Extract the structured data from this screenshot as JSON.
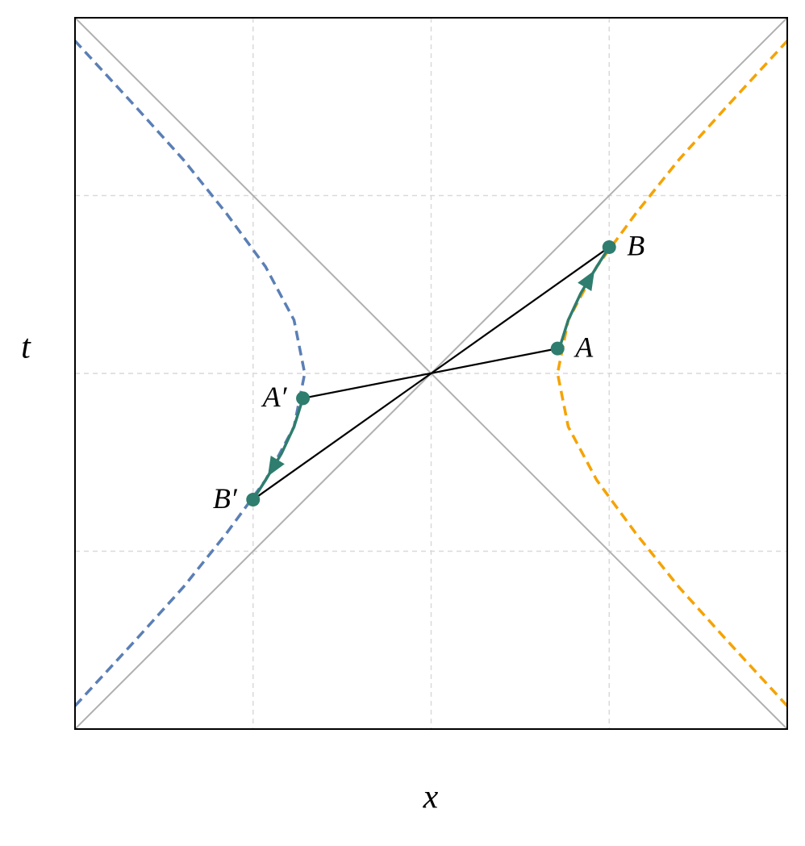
{
  "chart_data": {
    "type": "line",
    "xlabel": "x",
    "ylabel": "t",
    "xlim": [
      -2,
      2
    ],
    "ylim": [
      -2,
      2
    ],
    "xgrid": [
      -1,
      0,
      1
    ],
    "ygrid": [
      -1,
      0,
      1
    ],
    "grid": true,
    "series": [
      {
        "color": "#b0b0b0",
        "style": "solid",
        "x": [
          -2,
          2
        ],
        "values": [
          -2,
          2
        ]
      },
      {
        "color": "#b0b0b0",
        "style": "solid",
        "x": [
          -2,
          2
        ],
        "values": [
          2,
          -2
        ]
      },
      {
        "color": "#f5a300",
        "style": "dashed",
        "x": [
          2.0,
          1.66,
          1.39,
          1.15,
          0.93,
          0.77,
          0.71,
          0.77,
          0.93,
          1.15,
          1.39,
          1.66,
          2.0
        ],
        "values": [
          -1.87,
          -1.5,
          -1.2,
          -0.9,
          -0.6,
          -0.3,
          0,
          0.3,
          0.6,
          0.9,
          1.2,
          1.5,
          1.87
        ]
      },
      {
        "color": "#5b7fb5",
        "style": "dashed",
        "x": [
          -2.0,
          -1.66,
          -1.39,
          -1.15,
          -0.93,
          -0.77,
          -0.71,
          -0.77,
          -0.93,
          -1.15,
          -1.39,
          -1.66,
          -2.0
        ],
        "values": [
          -1.87,
          -1.5,
          -1.2,
          -0.9,
          -0.6,
          -0.3,
          0,
          0.3,
          0.6,
          0.9,
          1.2,
          1.5,
          1.87
        ]
      },
      {
        "color": "#000000",
        "style": "solid",
        "x": [
          -0.72,
          0.71
        ],
        "values": [
          -0.14,
          0.14
        ]
      },
      {
        "color": "#000000",
        "style": "solid",
        "x": [
          -1.0,
          1.0
        ],
        "values": [
          -0.71,
          0.71
        ]
      },
      {
        "color": "#2e7d6e",
        "style": "solid",
        "arrow": true,
        "x": [
          0.72,
          0.77,
          0.84,
          0.93,
          1.0
        ],
        "values": [
          0.14,
          0.3,
          0.45,
          0.6,
          0.71
        ]
      },
      {
        "color": "#2e7d6e",
        "style": "solid",
        "arrow": true,
        "x": [
          -0.72,
          -0.77,
          -0.84,
          -0.93,
          -1.0
        ],
        "values": [
          -0.14,
          -0.3,
          -0.45,
          -0.6,
          -0.71
        ]
      }
    ],
    "points": [
      {
        "label": "A",
        "x": 0.71,
        "y": 0.14,
        "side": "right"
      },
      {
        "label": "B",
        "x": 1.0,
        "y": 0.71,
        "side": "right"
      },
      {
        "label": "A′",
        "x": -0.72,
        "y": -0.14,
        "side": "left"
      },
      {
        "label": "B′",
        "x": -1.0,
        "y": -0.71,
        "side": "left"
      }
    ],
    "point_color": "#2e7d6e"
  }
}
